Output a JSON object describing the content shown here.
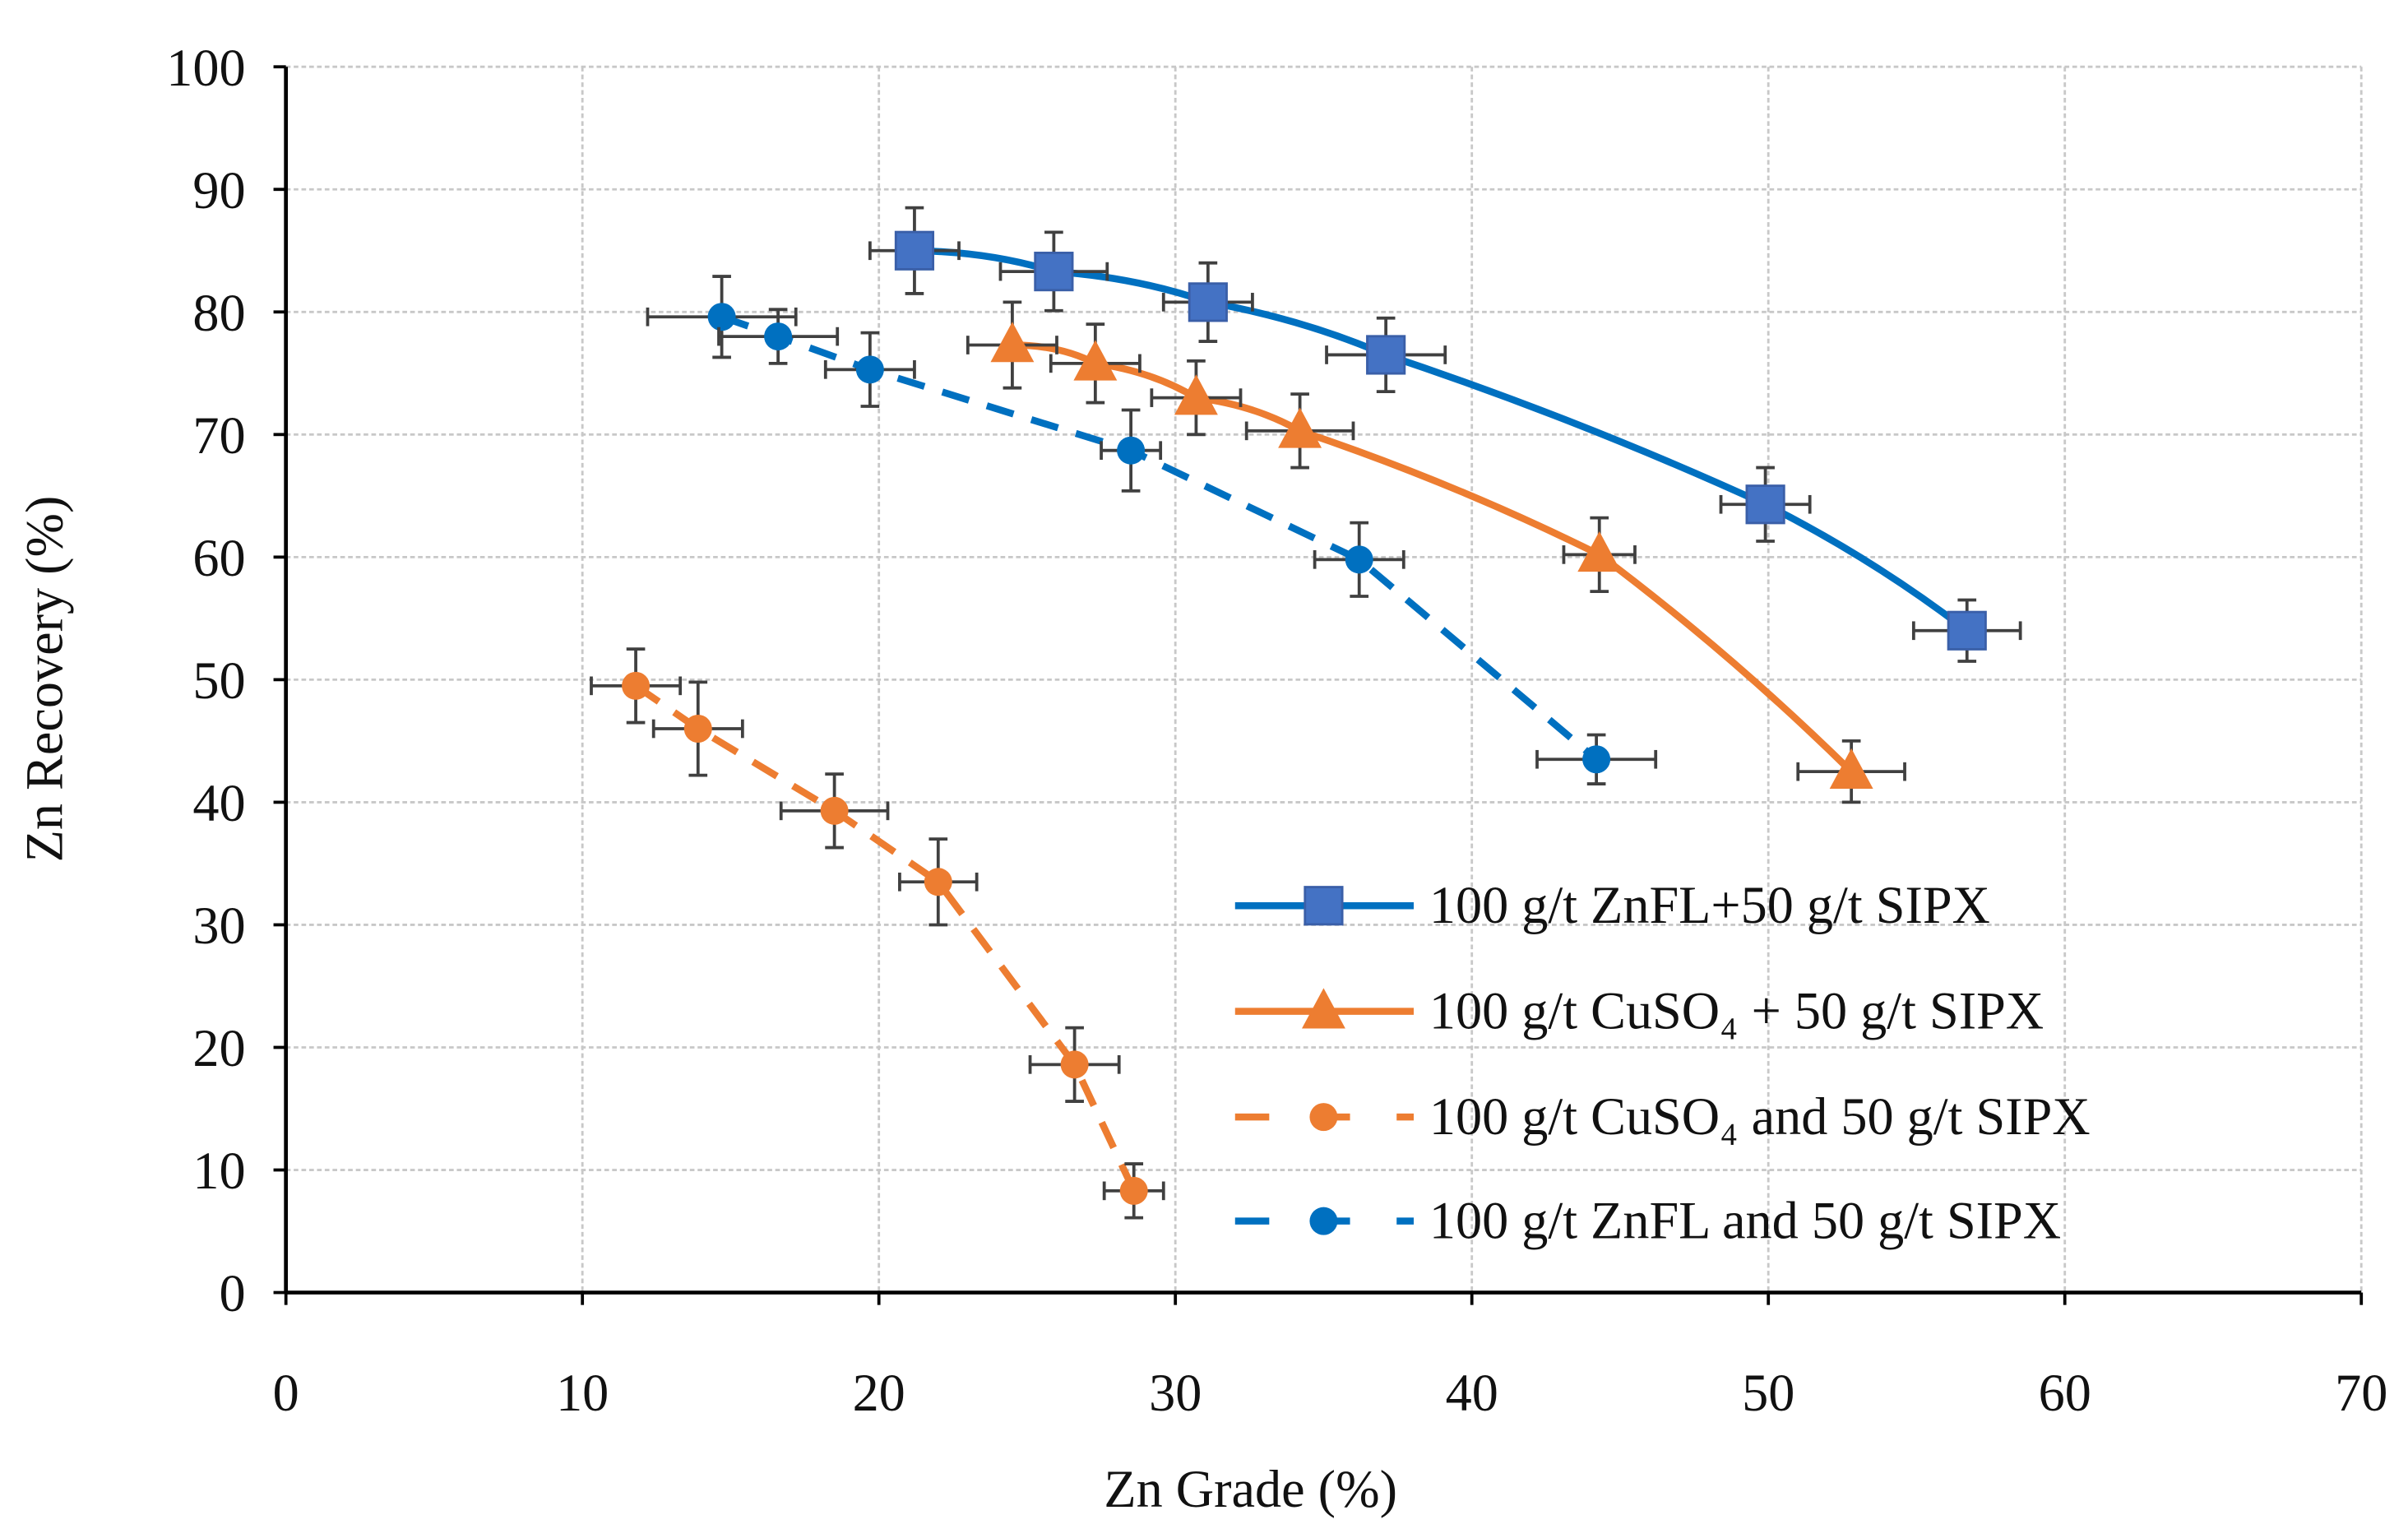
{
  "chart_data": {
    "type": "scatter",
    "title": "",
    "xlabel": "Zn Grade (%)",
    "ylabel": "Zn Recovery (%)",
    "xlim": [
      0,
      70
    ],
    "ylim": [
      0,
      100
    ],
    "xticks": [
      "0",
      "10",
      "20",
      "30",
      "40",
      "50",
      "60",
      "70"
    ],
    "yticks": [
      "0",
      "10",
      "20",
      "30",
      "40",
      "50",
      "60",
      "70",
      "80",
      "90",
      "100"
    ],
    "grid": true,
    "legend_position": "bottom-right",
    "series": [
      {
        "name": "100 g/t ZnFL+50 g/t SIPX",
        "color": "#0070C0",
        "marker": "square",
        "marker_color": "#4472C4",
        "dashed": false,
        "x": [
          21.2,
          25.9,
          31.1,
          37.1,
          49.9,
          56.7
        ],
        "y": [
          85.0,
          83.3,
          80.8,
          76.5,
          64.3,
          54.0
        ],
        "xerr": [
          1.5,
          1.8,
          1.5,
          2.0,
          1.5,
          1.8
        ],
        "yerr": [
          3.5,
          3.2,
          3.2,
          3.0,
          3.0,
          2.5
        ]
      },
      {
        "name": "100 g/t CuSO₄ + 50 g/t SIPX",
        "color": "#ED7D31",
        "marker": "triangle",
        "marker_color": "#ED7D31",
        "dashed": false,
        "x": [
          24.5,
          27.3,
          30.7,
          34.2,
          44.3,
          52.8
        ],
        "y": [
          77.3,
          75.8,
          73.0,
          70.3,
          60.2,
          42.5
        ],
        "xerr": [
          1.5,
          1.5,
          1.5,
          1.8,
          1.2,
          1.8
        ],
        "yerr": [
          3.5,
          3.2,
          3.0,
          3.0,
          3.0,
          2.5
        ]
      },
      {
        "name": "100 g/t CuSO₄ and 50 g/t SIPX",
        "color": "#ED7D31",
        "marker": "circle",
        "marker_color": "#ED7D31",
        "dashed": true,
        "x": [
          11.8,
          13.9,
          18.5,
          22.0,
          26.6,
          28.6
        ],
        "y": [
          49.5,
          46.0,
          39.3,
          33.5,
          18.6,
          8.3
        ],
        "xerr": [
          1.5,
          1.5,
          1.8,
          1.3,
          1.5,
          1.0
        ],
        "yerr": [
          3.0,
          3.8,
          3.0,
          3.5,
          3.0,
          2.2
        ]
      },
      {
        "name": "100 g/t ZnFL and 50 g/t SIPX",
        "color": "#0070C0",
        "marker": "circle",
        "marker_color": "#0070C0",
        "dashed": true,
        "x": [
          14.7,
          16.6,
          19.7,
          28.5,
          36.2,
          44.2
        ],
        "y": [
          79.6,
          78.0,
          75.3,
          68.7,
          59.8,
          43.5
        ],
        "xerr": [
          2.5,
          2.0,
          1.5,
          1.0,
          1.5,
          2.0
        ],
        "yerr": [
          3.3,
          2.2,
          3.0,
          3.3,
          3.0,
          2.0
        ]
      }
    ]
  }
}
